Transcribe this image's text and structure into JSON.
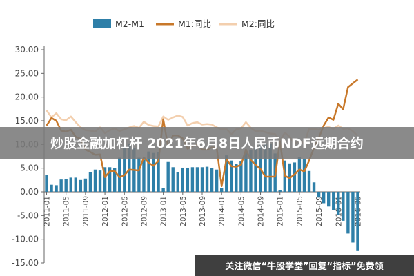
{
  "overlay_caption": "炒股金融加杠杆 2021年6月8日人民币NDF远期合约",
  "watermark": "关注微信“牛股学堂”回复“指标”免费领",
  "colors": {
    "bar": "#2e7fa8",
    "m1": "#c8782a",
    "m2": "#f3cfae",
    "axis": "#666666",
    "overlay_band": "#7a7a7a",
    "watermark_band": "#2a2a2a"
  },
  "chart_data": {
    "type": "bar+line",
    "title": "",
    "xlabel": "",
    "ylabel": "",
    "ylim": [
      -15,
      30
    ],
    "yticks": [
      "30.00",
      "25.00",
      "20.00",
      "15.00",
      "10.00",
      "5.00",
      "0.00",
      "-5.00",
      "-10.00",
      "-15.00"
    ],
    "ytick_values": [
      30,
      25,
      20,
      15,
      10,
      5,
      0,
      -5,
      -10,
      -15
    ],
    "xticks": [
      "2011-01",
      "2011-05",
      "2011-09",
      "2012-01",
      "2012-05",
      "2012-09",
      "2013-01",
      "2013-05",
      "2013-09",
      "2014-01",
      "2014-05",
      "2014-09",
      "2015-01",
      "2015-05",
      "2015-09",
      "2016-01",
      "2016-05"
    ],
    "x_months": [
      "2011-01",
      "2011-02",
      "2011-03",
      "2011-04",
      "2011-05",
      "2011-06",
      "2011-07",
      "2011-08",
      "2011-09",
      "2011-10",
      "2011-11",
      "2011-12",
      "2012-01",
      "2012-02",
      "2012-03",
      "2012-04",
      "2012-05",
      "2012-06",
      "2012-07",
      "2012-08",
      "2012-09",
      "2012-10",
      "2012-11",
      "2012-12",
      "2013-01",
      "2013-02",
      "2013-03",
      "2013-04",
      "2013-05",
      "2013-06",
      "2013-07",
      "2013-08",
      "2013-09",
      "2013-10",
      "2013-11",
      "2013-12",
      "2014-01",
      "2014-02",
      "2014-03",
      "2014-04",
      "2014-05",
      "2014-06",
      "2014-07",
      "2014-08",
      "2014-09",
      "2014-10",
      "2014-11",
      "2014-12",
      "2015-01",
      "2015-02",
      "2015-03",
      "2015-04",
      "2015-05",
      "2015-06",
      "2015-07",
      "2015-08",
      "2015-09",
      "2015-10",
      "2015-11",
      "2015-12",
      "2016-01",
      "2016-02",
      "2016-03",
      "2016-04",
      "2016-05"
    ],
    "legend": [
      "M2-M1",
      "M1:同比",
      "M2:同比"
    ],
    "series": [
      {
        "name": "M2-M1",
        "kind": "bar",
        "values": [
          3.6,
          1.5,
          1.4,
          2.6,
          2.7,
          3.0,
          3.0,
          2.5,
          2.8,
          4.1,
          4.7,
          4.5,
          5.2,
          5.2,
          5.0,
          7.2,
          9.6,
          10.2,
          9.3,
          7.2,
          6.8,
          8.5,
          8.2,
          8.4,
          0.8,
          6.3,
          5.2,
          4.1,
          5.1,
          5.1,
          5.2,
          5.2,
          5.2,
          5.3,
          5.0,
          4.7,
          0.8,
          7.7,
          6.6,
          5.9,
          6.4,
          8.3,
          8.9,
          9.3,
          10.0,
          10.1,
          10.2,
          8.1,
          0.3,
          6.6,
          6.0,
          6.2,
          7.4,
          7.0,
          4.4,
          2.0,
          -1.2,
          -2.4,
          -3.1,
          -3.9,
          -4.9,
          -6.1,
          -8.8,
          -10.7,
          -12.5
        ]
      },
      {
        "name": "M1:同比",
        "kind": "line",
        "values": [
          14.0,
          15.6,
          15.0,
          12.9,
          12.7,
          13.1,
          11.6,
          11.2,
          8.9,
          8.4,
          7.8,
          7.9,
          3.1,
          4.3,
          4.4,
          3.1,
          3.5,
          4.7,
          4.6,
          4.5,
          7.3,
          6.1,
          5.5,
          6.5,
          15.3,
          9.5,
          11.9,
          11.9,
          11.3,
          9.1,
          9.7,
          9.9,
          8.9,
          8.9,
          9.4,
          9.3,
          1.2,
          6.9,
          5.4,
          5.3,
          5.7,
          8.9,
          6.7,
          5.7,
          4.8,
          3.2,
          3.2,
          3.2,
          10.6,
          3.4,
          2.9,
          3.7,
          4.7,
          4.3,
          6.6,
          9.3,
          11.4,
          14.0,
          15.7,
          15.2,
          18.6,
          17.4,
          22.1,
          22.9,
          23.7
        ]
      },
      {
        "name": "M2:同比",
        "kind": "line",
        "values": [
          17.2,
          15.7,
          16.6,
          15.3,
          15.1,
          15.9,
          14.7,
          13.6,
          13.0,
          12.9,
          12.7,
          13.6,
          12.4,
          13.0,
          13.4,
          12.8,
          13.2,
          13.6,
          13.9,
          13.5,
          14.8,
          14.1,
          13.9,
          13.8,
          15.9,
          15.2,
          15.7,
          16.1,
          15.8,
          14.0,
          14.5,
          14.7,
          14.2,
          14.3,
          14.2,
          13.6,
          13.2,
          13.3,
          12.1,
          13.2,
          13.4,
          14.7,
          13.5,
          12.8,
          12.9,
          12.6,
          12.3,
          12.2,
          10.8,
          12.5,
          11.6,
          10.1,
          10.8,
          10.2,
          13.3,
          13.3,
          13.1,
          13.5,
          13.7,
          13.3,
          14.0,
          13.3,
          13.4,
          12.8,
          11.8
        ]
      }
    ]
  }
}
